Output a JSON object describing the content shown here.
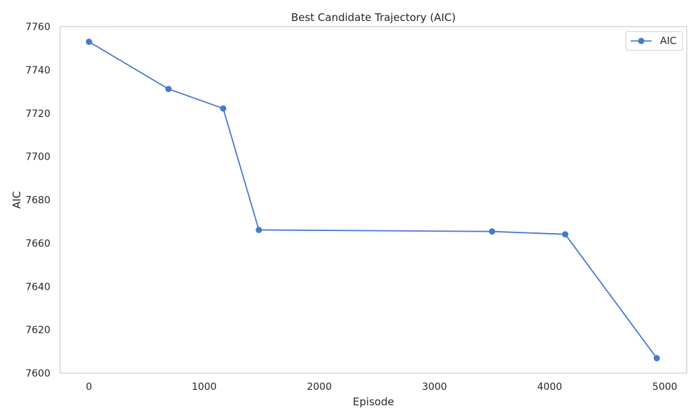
{
  "chart_data": {
    "type": "line",
    "title": "Best Candidate Trajectory (AIC)",
    "xlabel": "Episode",
    "ylabel": "AIC",
    "xlim": [
      -250,
      5190
    ],
    "ylim": [
      7600,
      7760
    ],
    "xticks": [
      0,
      1000,
      2000,
      3000,
      4000,
      5000
    ],
    "yticks": [
      7600,
      7620,
      7640,
      7660,
      7680,
      7700,
      7720,
      7740,
      7760
    ],
    "grid": false,
    "legend_position": "top-right",
    "series": [
      {
        "name": "AIC",
        "color": "#4878d0",
        "marker": "circle",
        "points": [
          {
            "x": 0,
            "y": 7753
          },
          {
            "x": 690,
            "y": 7731.2
          },
          {
            "x": 1165,
            "y": 7722.2
          },
          {
            "x": 1475,
            "y": 7666.1
          },
          {
            "x": 3500,
            "y": 7665.4
          },
          {
            "x": 4135,
            "y": 7664.1
          },
          {
            "x": 4930,
            "y": 7606.9
          }
        ]
      }
    ]
  }
}
